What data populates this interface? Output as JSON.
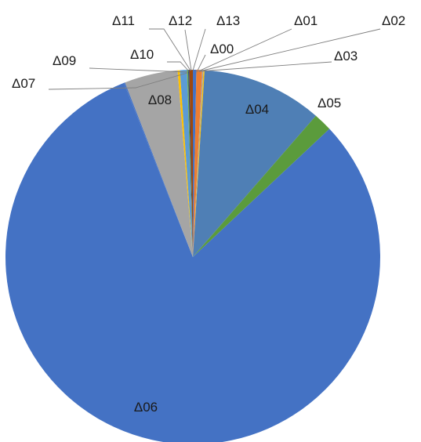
{
  "chart_data": {
    "type": "pie",
    "title": "",
    "start_angle_deg": 0,
    "direction": "clockwise",
    "slices": [
      {
        "label": "Δ00",
        "value": 0.3,
        "color": "#4472C4"
      },
      {
        "label": "Δ01",
        "value": 0.5,
        "color": "#ED7D31"
      },
      {
        "label": "Δ02",
        "value": 0.1,
        "color": "#A5A5A5"
      },
      {
        "label": "Δ03",
        "value": 0.1,
        "color": "#FFC000"
      },
      {
        "label": "Δ04",
        "value": 10.4,
        "color": "#4F7FB5"
      },
      {
        "label": "Δ05",
        "value": 1.6,
        "color": "#5B9B3C"
      },
      {
        "label": "Δ06",
        "value": 81.0,
        "color": "#4472C4"
      },
      {
        "label": "Δ07",
        "value": 0.1,
        "color": "#4472C4"
      },
      {
        "label": "Δ08",
        "value": 4.6,
        "color": "#A5A5A5"
      },
      {
        "label": "Δ09",
        "value": 0.2,
        "color": "#FFC000"
      },
      {
        "label": "Δ10",
        "value": 0.6,
        "color": "#5B9BD5"
      },
      {
        "label": "Δ11",
        "value": 0.1,
        "color": "#70AD47"
      },
      {
        "label": "Δ12",
        "value": 0.1,
        "color": "#264478"
      },
      {
        "label": "Δ13",
        "value": 0.3,
        "color": "#9E480E"
      }
    ]
  }
}
